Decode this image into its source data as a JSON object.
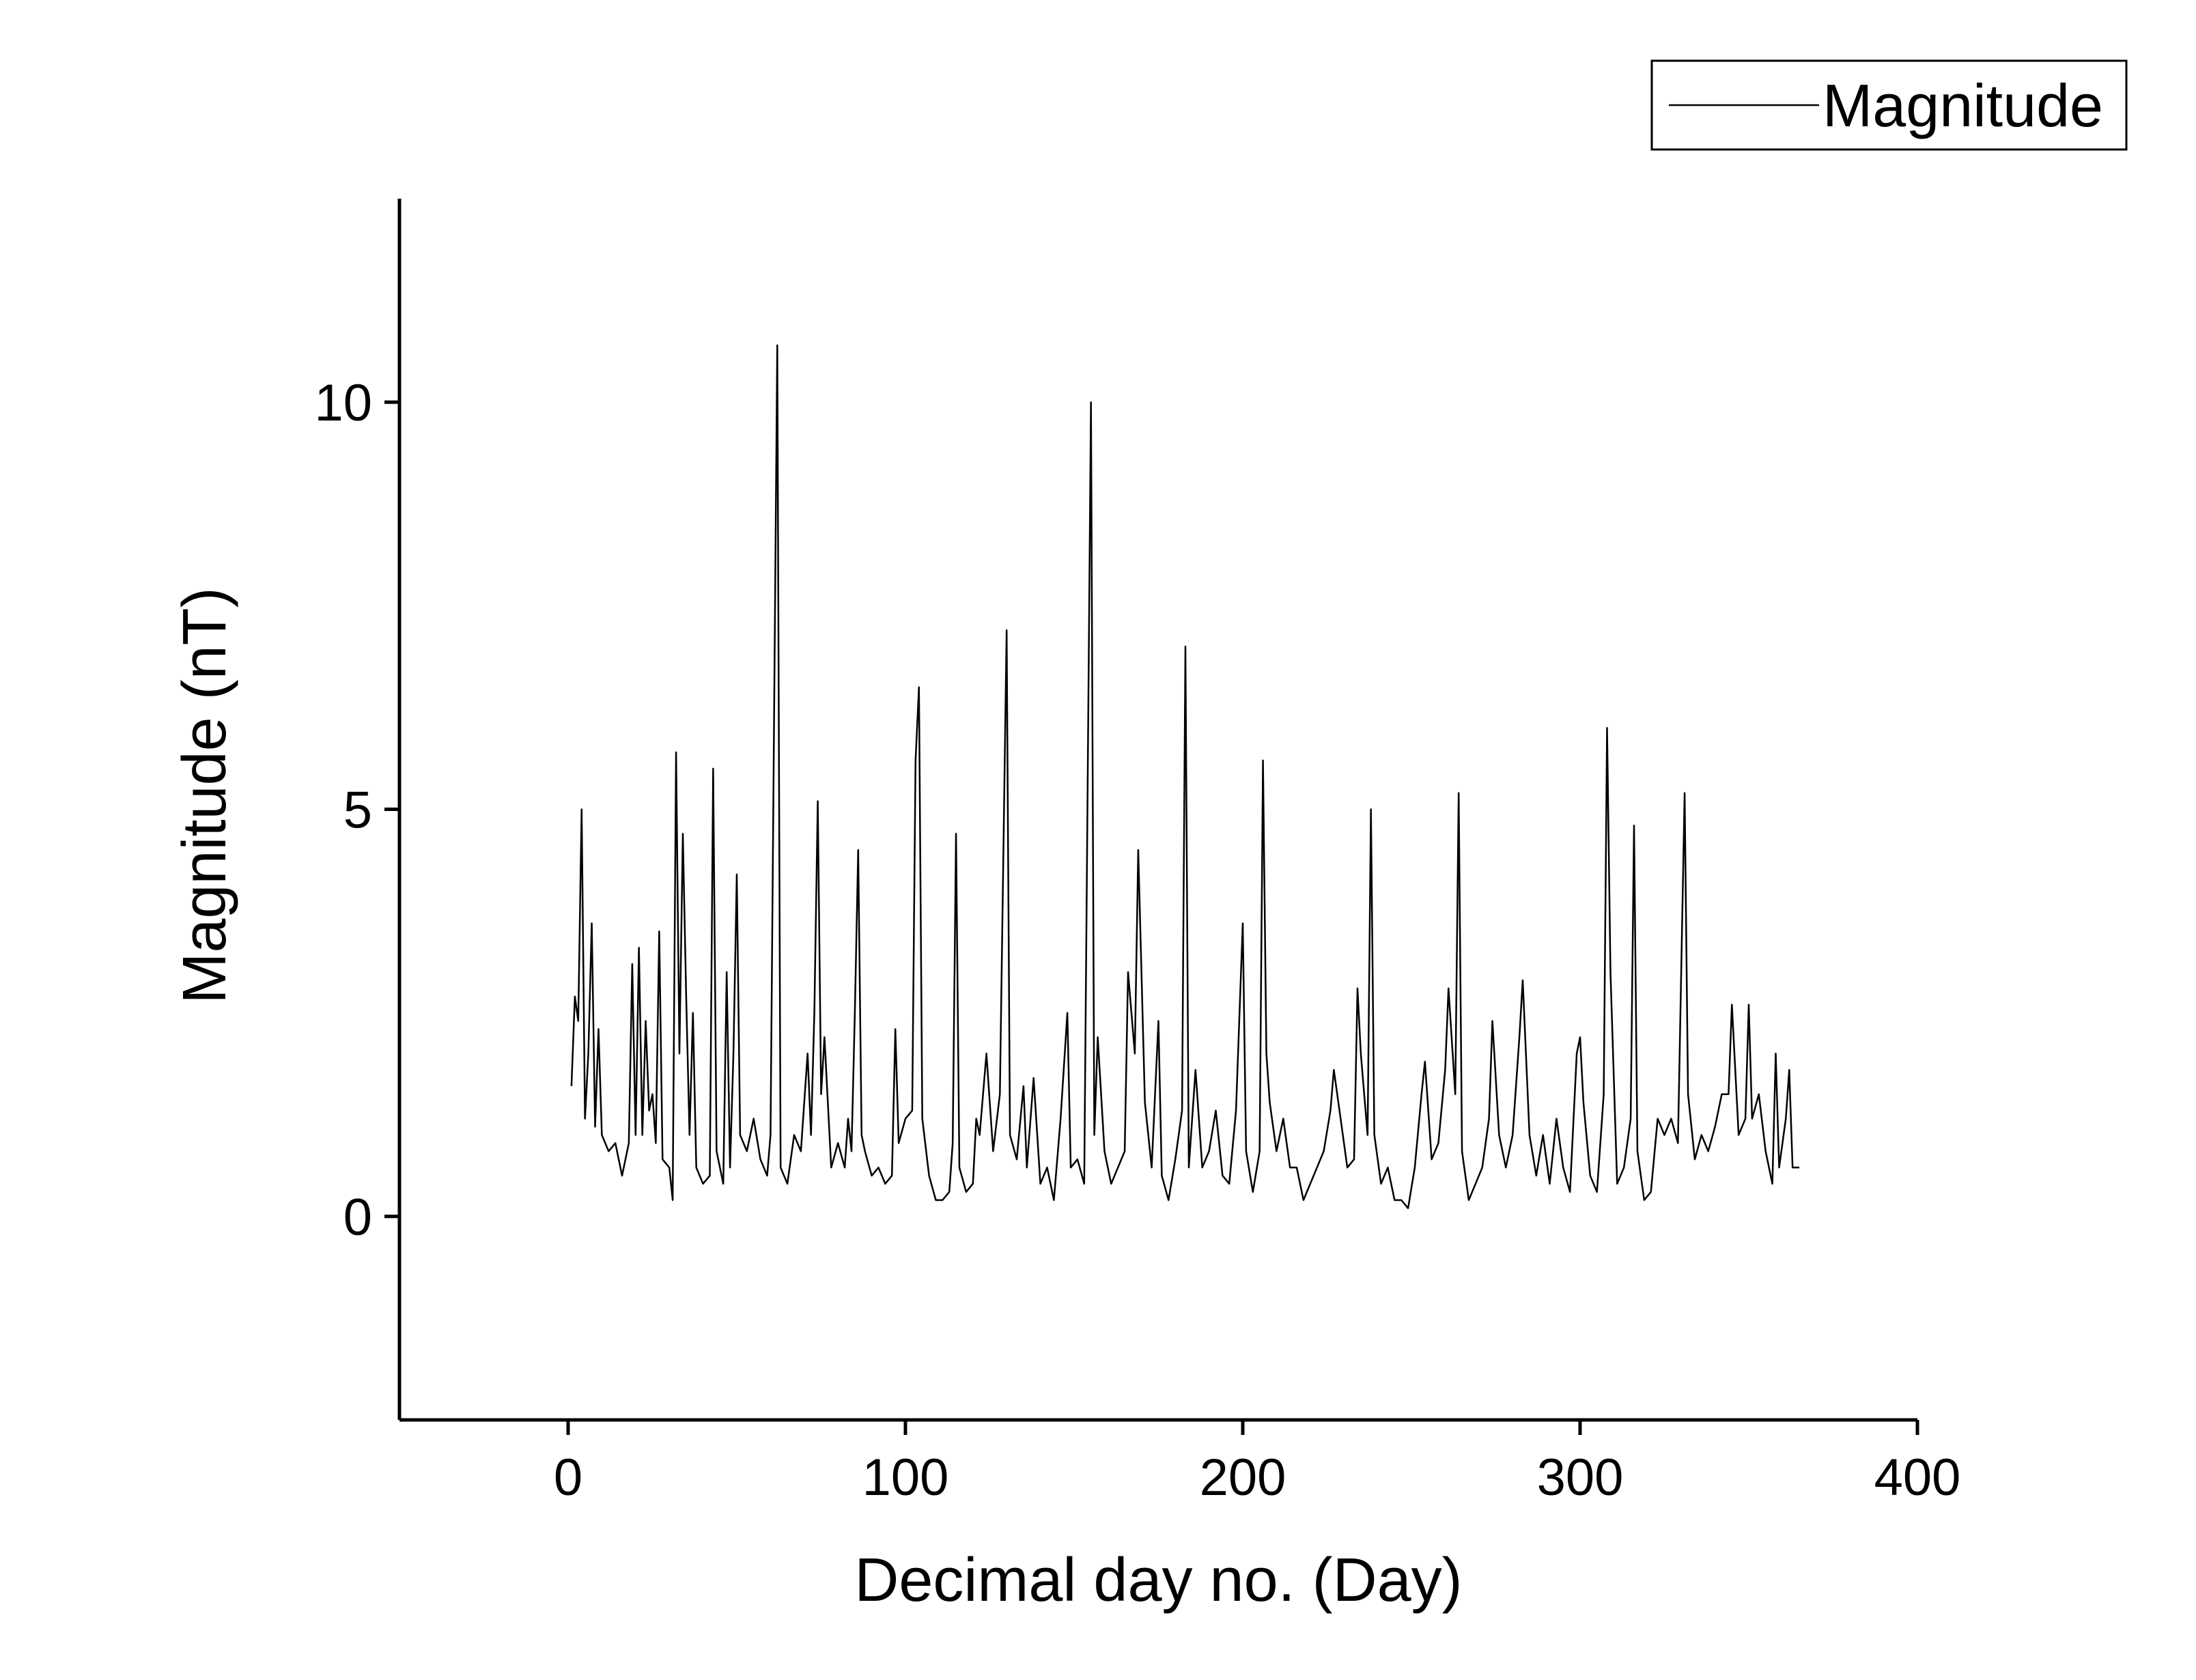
{
  "chart_data": {
    "type": "line",
    "xlabel": "Decimal day no. (Day)",
    "ylabel": "Magnitude (nT)",
    "xlim": [
      -50,
      400
    ],
    "xticks": [
      0,
      100,
      200,
      300,
      400
    ],
    "ylim": [
      -2.5,
      12.5
    ],
    "yticks": [
      0,
      5,
      10
    ],
    "legend": "top-right",
    "grid": false,
    "x": [
      1,
      2,
      3,
      4,
      5,
      6,
      7,
      8,
      9,
      10,
      12,
      14,
      16,
      18,
      19,
      20,
      21,
      22,
      23,
      24,
      25,
      26,
      27,
      28,
      30,
      31,
      32,
      33,
      34,
      35,
      36,
      37,
      38,
      40,
      42,
      43,
      44,
      46,
      47,
      48,
      49,
      50,
      51,
      53,
      55,
      57,
      59,
      60,
      62,
      63,
      65,
      67,
      69,
      71,
      72,
      73,
      74,
      75,
      76,
      78,
      80,
      82,
      83,
      84,
      85,
      86,
      87,
      88,
      90,
      92,
      94,
      96,
      97,
      98,
      100,
      102,
      103,
      104,
      105,
      107,
      109,
      111,
      113,
      114,
      115,
      116,
      118,
      120,
      121,
      122,
      124,
      126,
      128,
      130,
      131,
      133,
      135,
      136,
      138,
      140,
      142,
      144,
      146,
      148,
      149,
      151,
      153,
      155,
      156,
      157,
      159,
      161,
      163,
      165,
      166,
      168,
      169,
      171,
      173,
      175,
      176,
      178,
      180,
      182,
      183,
      184,
      186,
      188,
      190,
      192,
      194,
      196,
      198,
      200,
      201,
      203,
      205,
      206,
      207,
      208,
      210,
      212,
      214,
      216,
      218,
      220,
      222,
      224,
      226,
      227,
      229,
      231,
      233,
      234,
      235,
      237,
      238,
      239,
      241,
      243,
      245,
      247,
      249,
      251,
      253,
      254,
      256,
      258,
      260,
      261,
      263,
      264,
      265,
      267,
      269,
      271,
      273,
      274,
      276,
      278,
      280,
      282,
      283,
      285,
      287,
      289,
      291,
      293,
      295,
      297,
      299,
      300,
      301,
      303,
      305,
      307,
      308,
      309,
      311,
      313,
      315,
      316,
      317,
      319,
      321,
      323,
      325,
      327,
      329,
      331,
      332,
      334,
      336,
      338,
      340,
      342,
      344,
      345,
      347,
      349,
      350,
      351,
      353,
      355,
      357,
      358,
      359,
      361,
      362,
      363,
      365
    ],
    "series": [
      {
        "name": "Magnitude",
        "color": "#000000",
        "values": [
          1.6,
          2.7,
          2.4,
          5.0,
          1.2,
          2.0,
          3.6,
          1.1,
          2.3,
          1.0,
          0.8,
          0.9,
          0.5,
          0.9,
          3.1,
          1.0,
          3.3,
          1.0,
          2.4,
          1.3,
          1.5,
          0.9,
          3.5,
          0.7,
          0.6,
          0.2,
          5.7,
          2.0,
          4.7,
          2.7,
          1.0,
          2.5,
          0.6,
          0.4,
          0.5,
          5.5,
          0.8,
          0.4,
          3.0,
          0.6,
          2.0,
          4.2,
          1.0,
          0.8,
          1.2,
          0.7,
          0.5,
          1.0,
          10.7,
          0.6,
          0.4,
          1.0,
          0.8,
          2.0,
          1.0,
          2.5,
          5.1,
          1.5,
          2.2,
          0.6,
          0.9,
          0.6,
          1.2,
          0.8,
          2.5,
          4.5,
          1.0,
          0.8,
          0.5,
          0.6,
          0.4,
          0.5,
          2.3,
          0.9,
          1.2,
          1.3,
          5.6,
          6.5,
          1.2,
          0.5,
          0.2,
          0.2,
          0.3,
          0.9,
          4.7,
          0.6,
          0.3,
          0.4,
          1.2,
          1.0,
          2.0,
          0.8,
          1.5,
          7.2,
          1.0,
          0.7,
          1.6,
          0.6,
          1.7,
          0.4,
          0.6,
          0.2,
          1.2,
          2.5,
          0.6,
          0.7,
          0.4,
          10.0,
          1.0,
          2.2,
          0.8,
          0.4,
          0.6,
          0.8,
          3.0,
          2.0,
          4.5,
          1.4,
          0.6,
          2.4,
          0.5,
          0.2,
          0.7,
          1.3,
          7.0,
          0.6,
          1.8,
          0.6,
          0.8,
          1.3,
          0.5,
          0.4,
          1.3,
          3.6,
          0.8,
          0.3,
          0.8,
          5.6,
          2.0,
          1.4,
          0.8,
          1.2,
          0.6,
          0.6,
          0.2,
          0.4,
          0.6,
          0.8,
          1.3,
          1.8,
          1.2,
          0.6,
          0.7,
          2.8,
          2.0,
          1.0,
          5.0,
          1.0,
          0.4,
          0.6,
          0.2,
          0.2,
          0.1,
          0.6,
          1.5,
          1.9,
          0.7,
          0.9,
          1.8,
          2.8,
          1.5,
          5.2,
          0.8,
          0.2,
          0.4,
          0.6,
          1.2,
          2.4,
          1.0,
          0.6,
          1.0,
          2.2,
          2.9,
          1.0,
          0.5,
          1.0,
          0.4,
          1.2,
          0.6,
          0.3,
          2.0,
          2.2,
          1.4,
          0.5,
          0.3,
          1.5,
          6.0,
          3.0,
          0.4,
          0.6,
          1.2,
          4.8,
          0.8,
          0.2,
          0.3,
          1.2,
          1.0,
          1.2,
          0.9,
          5.2,
          1.5,
          0.7,
          1.0,
          0.8,
          1.1,
          1.5,
          1.5,
          2.6,
          1.0,
          1.2,
          2.6,
          1.2,
          1.5,
          0.8,
          0.4,
          2.0,
          0.6,
          1.2,
          1.8,
          0.6,
          0.6
        ]
      }
    ]
  }
}
